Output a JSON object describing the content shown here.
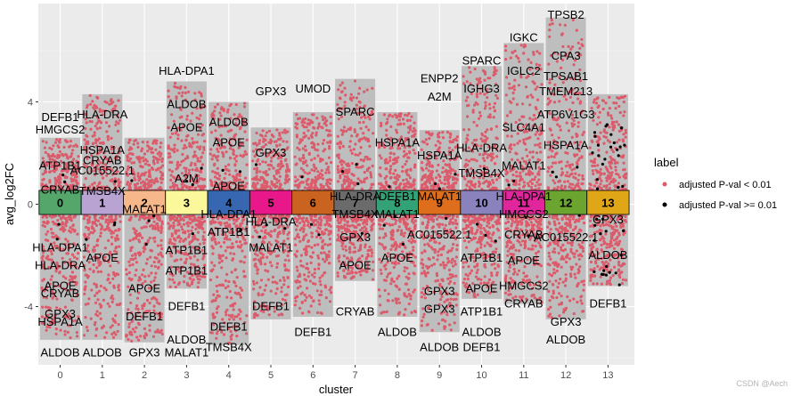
{
  "chart_data": {
    "type": "scatter",
    "title": "",
    "xlabel": "cluster",
    "ylabel": "avg_log2FC",
    "categories": [
      "0",
      "1",
      "2",
      "3",
      "4",
      "5",
      "6",
      "7",
      "8",
      "9",
      "10",
      "11",
      "12",
      "13"
    ],
    "y_ticks": [
      -4,
      0,
      4
    ],
    "ylim": [
      -6.2,
      7.8
    ],
    "grid": true,
    "legend": {
      "title": "label",
      "position": "right",
      "entries": [
        {
          "label": "adjusted P-val < 0.01",
          "color": "#dc5b6b"
        },
        {
          "label": "adjusted P-val >= 0.01",
          "color": "#000000"
        }
      ]
    },
    "column_ranges": [
      {
        "cluster": "0",
        "max": 2.6,
        "min": -5.3
      },
      {
        "cluster": "1",
        "max": 4.3,
        "min": -5.3
      },
      {
        "cluster": "2",
        "max": 2.6,
        "min": -5.4
      },
      {
        "cluster": "3",
        "max": 4.8,
        "min": -3.3
      },
      {
        "cluster": "4",
        "max": 4.0,
        "min": -5.5
      },
      {
        "cluster": "5",
        "max": 3.0,
        "min": -4.5
      },
      {
        "cluster": "6",
        "max": 3.6,
        "min": -4.4
      },
      {
        "cluster": "7",
        "max": 4.9,
        "min": -3.0
      },
      {
        "cluster": "8",
        "max": 3.6,
        "min": -4.4
      },
      {
        "cluster": "9",
        "max": 2.9,
        "min": -5.0
      },
      {
        "cluster": "10",
        "max": 5.4,
        "min": -3.7
      },
      {
        "cluster": "11",
        "max": 6.3,
        "min": -3.9
      },
      {
        "cluster": "12",
        "max": 7.3,
        "min": -4.5
      },
      {
        "cluster": "13",
        "max": 4.3,
        "min": -3.2
      }
    ],
    "cluster_colors": [
      "#54a66a",
      "#b9a3d3",
      "#f6b88a",
      "#fbf89c",
      "#3767b0",
      "#e8178a",
      "#c9631f",
      "#6b6b6b",
      "#33a377",
      "#df6e1c",
      "#8a82bc",
      "#e1259c",
      "#6ba42e",
      "#dfa617"
    ],
    "gene_labels": [
      {
        "text": "DEFB1",
        "x": 0,
        "y": 3.4
      },
      {
        "text": "HMGCS2",
        "x": 0,
        "y": 2.9
      },
      {
        "text": "ATP1B1",
        "x": 0,
        "y": 1.5
      },
      {
        "text": "CRYAB",
        "x": 0,
        "y": 0.55
      },
      {
        "text": "HLA-DPA1",
        "x": 0,
        "y": -1.7
      },
      {
        "text": "HLA-DRA",
        "x": 0,
        "y": -2.4
      },
      {
        "text": "APOE",
        "x": 0,
        "y": -3.2
      },
      {
        "text": "CRYAB",
        "x": 0,
        "y": -3.5
      },
      {
        "text": "GPX3",
        "x": 0,
        "y": -4.3
      },
      {
        "text": "HSPA1A",
        "x": 0,
        "y": -4.6
      },
      {
        "text": "ALDOB",
        "x": 0,
        "y": -5.8
      },
      {
        "text": "HLA-DRA",
        "x": 1,
        "y": 3.5
      },
      {
        "text": "HSPA1A",
        "x": 1,
        "y": 2.1
      },
      {
        "text": "AC015522.1",
        "x": 1,
        "y": 1.3
      },
      {
        "text": "CRYAB",
        "x": 1,
        "y": 1.7
      },
      {
        "text": "TMSB4X",
        "x": 1,
        "y": 0.5
      },
      {
        "text": "APOE",
        "x": 1,
        "y": -2.1
      },
      {
        "text": "ALDOB",
        "x": 1,
        "y": -5.8
      },
      {
        "text": "MALAT1",
        "x": 2,
        "y": -0.2
      },
      {
        "text": "APOE",
        "x": 2,
        "y": -3.3
      },
      {
        "text": "DEFB1",
        "x": 2,
        "y": -4.4
      },
      {
        "text": "GPX3",
        "x": 2,
        "y": -5.8
      },
      {
        "text": "HLA-DPA1",
        "x": 3,
        "y": 5.2
      },
      {
        "text": "ALDOB",
        "x": 3,
        "y": 3.9
      },
      {
        "text": "APOE",
        "x": 3,
        "y": 3.0
      },
      {
        "text": "A2M",
        "x": 3,
        "y": 1.0
      },
      {
        "text": "ATP1B1",
        "x": 3,
        "y": -1.8
      },
      {
        "text": "ATP1B1",
        "x": 3,
        "y": -2.6
      },
      {
        "text": "DEFB1",
        "x": 3,
        "y": -4.0
      },
      {
        "text": "ALDOB",
        "x": 3,
        "y": -5.3
      },
      {
        "text": "MALAT1",
        "x": 3,
        "y": -5.8
      },
      {
        "text": "ALDOB",
        "x": 4,
        "y": 3.2
      },
      {
        "text": "APOE",
        "x": 4,
        "y": 2.4
      },
      {
        "text": "APOE",
        "x": 4,
        "y": 0.7
      },
      {
        "text": "HLA-DPA1",
        "x": 4,
        "y": -0.4
      },
      {
        "text": "ATP1B1",
        "x": 4,
        "y": -1.1
      },
      {
        "text": "DEFB1",
        "x": 4,
        "y": -4.8
      },
      {
        "text": "TMSB4X",
        "x": 4,
        "y": -5.6
      },
      {
        "text": "GPX3",
        "x": 5,
        "y": 4.4
      },
      {
        "text": "GPX3",
        "x": 5,
        "y": 2.0
      },
      {
        "text": "HLA-DRA",
        "x": 5,
        "y": -0.7
      },
      {
        "text": "MALAT1",
        "x": 5,
        "y": -1.7
      },
      {
        "text": "DEFB1",
        "x": 5,
        "y": -4.0
      },
      {
        "text": "UMOD",
        "x": 6,
        "y": 4.5
      },
      {
        "text": "DEFB1",
        "x": 6,
        "y": -5.0
      },
      {
        "text": "SPARC",
        "x": 7,
        "y": 3.6
      },
      {
        "text": "HLA-DRA",
        "x": 7,
        "y": 0.3
      },
      {
        "text": "TMSB4X",
        "x": 7,
        "y": -0.4
      },
      {
        "text": "GPX3",
        "x": 7,
        "y": -1.3
      },
      {
        "text": "APOE",
        "x": 7,
        "y": -2.4
      },
      {
        "text": "CRYAB",
        "x": 7,
        "y": -4.2
      },
      {
        "text": "HSPA1A",
        "x": 8,
        "y": 2.4
      },
      {
        "text": "DEFB1",
        "x": 8,
        "y": 0.3
      },
      {
        "text": "MALAT1",
        "x": 8,
        "y": -0.4
      },
      {
        "text": "APOE",
        "x": 8,
        "y": -2.1
      },
      {
        "text": "ALDOB",
        "x": 8,
        "y": -5.0
      },
      {
        "text": "ENPP2",
        "x": 9,
        "y": 4.9
      },
      {
        "text": "A2M",
        "x": 9,
        "y": 4.2
      },
      {
        "text": "HSPA1A",
        "x": 9,
        "y": 1.9
      },
      {
        "text": "MALAT1",
        "x": 9,
        "y": 0.3
      },
      {
        "text": "AC015522.1",
        "x": 9,
        "y": -1.2
      },
      {
        "text": "GPX3",
        "x": 9,
        "y": -3.4
      },
      {
        "text": "GPX3",
        "x": 9,
        "y": -4.1
      },
      {
        "text": "ALDOB",
        "x": 9,
        "y": -5.6
      },
      {
        "text": "SPARC",
        "x": 10,
        "y": 5.6
      },
      {
        "text": "IGHG3",
        "x": 10,
        "y": 4.5
      },
      {
        "text": "HLA-DRA",
        "x": 10,
        "y": 2.2
      },
      {
        "text": "TMSB4X",
        "x": 10,
        "y": 1.2
      },
      {
        "text": "ATP1B1",
        "x": 10,
        "y": -2.1
      },
      {
        "text": "APOE",
        "x": 10,
        "y": -3.3
      },
      {
        "text": "ATP1B1",
        "x": 10,
        "y": -4.2
      },
      {
        "text": "ALDOB",
        "x": 10,
        "y": -5.0
      },
      {
        "text": "DEFB1",
        "x": 10,
        "y": -5.6
      },
      {
        "text": "IGKC",
        "x": 11,
        "y": 6.5
      },
      {
        "text": "IGLC2",
        "x": 11,
        "y": 5.2
      },
      {
        "text": "SLC4A1",
        "x": 11,
        "y": 3.0
      },
      {
        "text": "MALAT1",
        "x": 11,
        "y": 1.5
      },
      {
        "text": "HLA-DPA1",
        "x": 11,
        "y": 0.3
      },
      {
        "text": "HMGCS2",
        "x": 11,
        "y": -0.4
      },
      {
        "text": "CRYAB",
        "x": 11,
        "y": -1.2
      },
      {
        "text": "APOE",
        "x": 11,
        "y": -2.2
      },
      {
        "text": "HMGCS2",
        "x": 11,
        "y": -3.2
      },
      {
        "text": "CRYAB",
        "x": 11,
        "y": -3.9
      },
      {
        "text": "TPSB2",
        "x": 12,
        "y": 7.4
      },
      {
        "text": "CPA3",
        "x": 12,
        "y": 5.8
      },
      {
        "text": "TPSAB1",
        "x": 12,
        "y": 5.0
      },
      {
        "text": "TMEM213",
        "x": 12,
        "y": 4.4
      },
      {
        "text": "ATP6V1G3",
        "x": 12,
        "y": 3.5
      },
      {
        "text": "HSPA1A",
        "x": 12,
        "y": 2.3
      },
      {
        "text": "AC015522.1",
        "x": 12,
        "y": -1.3
      },
      {
        "text": "GPX3",
        "x": 12,
        "y": -4.6
      },
      {
        "text": "ALDOB",
        "x": 12,
        "y": -5.3
      },
      {
        "text": "GPX3",
        "x": 13,
        "y": -0.6
      },
      {
        "text": "ALDOB",
        "x": 13,
        "y": -2.0
      },
      {
        "text": "DEFB1",
        "x": 13,
        "y": -3.9
      }
    ]
  },
  "watermark": "CSDN @Aech"
}
